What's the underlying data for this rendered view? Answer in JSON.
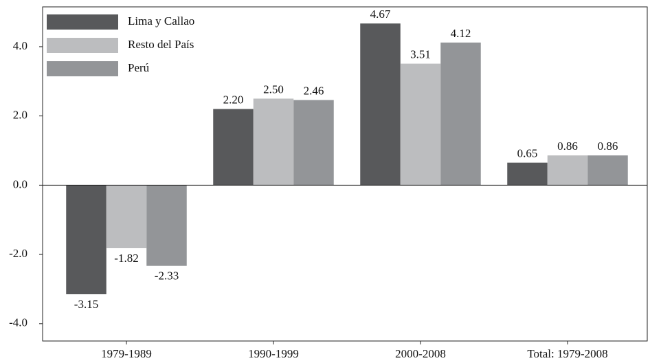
{
  "chart_data": {
    "type": "bar",
    "categories": [
      "1979-1989",
      "1990-1999",
      "2000-2008",
      "Total: 1979-2008"
    ],
    "series": [
      {
        "name": "Lima y Callao",
        "color": "#58595b",
        "values": [
          -3.15,
          2.2,
          4.67,
          0.65
        ],
        "value_labels": [
          "-3.15",
          "2.20",
          "4.67",
          "0.65"
        ]
      },
      {
        "name": "Resto del País",
        "color": "#bcbdbf",
        "values": [
          -1.82,
          2.5,
          3.51,
          0.86
        ],
        "value_labels": [
          "-1.82",
          "2.50",
          "3.51",
          "0.86"
        ]
      },
      {
        "name": "Perú",
        "color": "#939598",
        "values": [
          -2.33,
          2.46,
          4.12,
          0.86
        ],
        "value_labels": [
          "-2.33",
          "2.46",
          "4.12",
          "0.86"
        ]
      }
    ],
    "ylim": [
      -4.5,
      5.15
    ],
    "yticks": [
      {
        "value": -4,
        "label": "-4.0"
      },
      {
        "value": -2,
        "label": "-2.0"
      },
      {
        "value": 0,
        "label": "0.0"
      },
      {
        "value": 2,
        "label": "2.0"
      },
      {
        "value": 4,
        "label": "4.0"
      }
    ],
    "legend": "upper left"
  }
}
